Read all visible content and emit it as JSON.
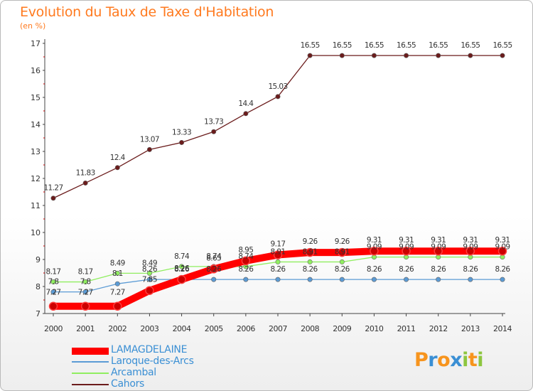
{
  "header": {
    "title": "Evolution du Taux de Taxe d'Habitation",
    "subtitle": "(en %)"
  },
  "chart_data": {
    "type": "line",
    "title": "Evolution du Taux de Taxe d'Habitation",
    "subtitle": "(en %)",
    "xlabel": "",
    "ylabel": "",
    "categories": [
      "2000",
      "2001",
      "2002",
      "2003",
      "2004",
      "2005",
      "2006",
      "2007",
      "2008",
      "2009",
      "2010",
      "2011",
      "2012",
      "2013",
      "2014"
    ],
    "ylim": [
      7,
      17
    ],
    "yticks": [
      7,
      8,
      9,
      10,
      11,
      12,
      13,
      14,
      15,
      16,
      17
    ],
    "grid": false,
    "legend_position": "bottom-left",
    "series": [
      {
        "name": "LAMAGDELAINE",
        "color": "#ff0000",
        "values": [
          7.27,
          7.27,
          7.27,
          7.85,
          8.26,
          8.65,
          8.95,
          9.17,
          9.26,
          9.26,
          9.31,
          9.31,
          9.31,
          9.31,
          9.31
        ],
        "labels": [
          "7.27",
          "7.27",
          "7.27",
          "7.85",
          "8.26",
          "8.65",
          "8.95",
          "9.17",
          "9.26",
          "9.26",
          "9.31",
          "9.31",
          "9.31",
          "9.31",
          "9.31"
        ]
      },
      {
        "name": "Laroque-des-Arcs",
        "color": "#5b9bd5",
        "values": [
          7.8,
          7.8,
          8.1,
          8.26,
          8.26,
          8.26,
          8.26,
          8.26,
          8.26,
          8.26,
          8.26,
          8.26,
          8.26,
          8.26,
          8.26
        ],
        "labels": [
          "7.8",
          "7.8",
          "8.1",
          "8.26",
          "8.26",
          "8.26",
          "8.26",
          "8.26",
          "8.26",
          "8.26",
          "8.26",
          "8.26",
          "8.26",
          "8.26",
          "8.26"
        ]
      },
      {
        "name": "Arcambal",
        "color": "#90ee60",
        "values": [
          8.17,
          8.17,
          8.49,
          8.49,
          8.74,
          8.74,
          8.74,
          8.91,
          8.91,
          8.91,
          9.09,
          9.09,
          9.09,
          9.09,
          9.09
        ],
        "labels": [
          "8.17",
          "8.17",
          "8.49",
          "8.49",
          "8.74",
          "8.74",
          "8.74",
          "8.91",
          "8.91",
          "8.91",
          "9.09",
          "9.09",
          "9.09",
          "9.09",
          "9.09"
        ]
      },
      {
        "name": "Cahors",
        "color": "#6b1c1c",
        "values": [
          11.27,
          11.83,
          12.4,
          13.07,
          13.33,
          13.73,
          14.4,
          15.03,
          16.55,
          16.55,
          16.55,
          16.55,
          16.55,
          16.55,
          16.55
        ],
        "labels": [
          "11.27",
          "11.83",
          "12.4",
          "13.07",
          "13.33",
          "13.73",
          "14.4",
          "15.03",
          "16.55",
          "16.55",
          "16.55",
          "16.55",
          "16.55",
          "16.55",
          "16.55"
        ]
      }
    ]
  },
  "legend": {
    "items": [
      {
        "label": "LAMAGDELAINE",
        "color": "#ff0000"
      },
      {
        "label": "Laroque-des-Arcs",
        "color": "#5b9bd5"
      },
      {
        "label": "Arcambal",
        "color": "#90ee60"
      },
      {
        "label": "Cahors",
        "color": "#6b1c1c"
      }
    ]
  },
  "logo": {
    "text": "Proxiti",
    "letters": [
      {
        "ch": "P",
        "color": "#f7941d"
      },
      {
        "ch": "r",
        "color": "#3a8fd4"
      },
      {
        "ch": "o",
        "color": "#f7941d"
      },
      {
        "ch": "x",
        "color": "#3a8fd4"
      },
      {
        "ch": "i",
        "color": "#8dc63f"
      },
      {
        "ch": "t",
        "color": "#f7941d"
      },
      {
        "ch": "i",
        "color": "#8dc63f"
      }
    ]
  },
  "colors": {
    "title": "#ff7a1f",
    "axis": "#444444",
    "tick_label": "#333333",
    "data_label": "#333333"
  }
}
